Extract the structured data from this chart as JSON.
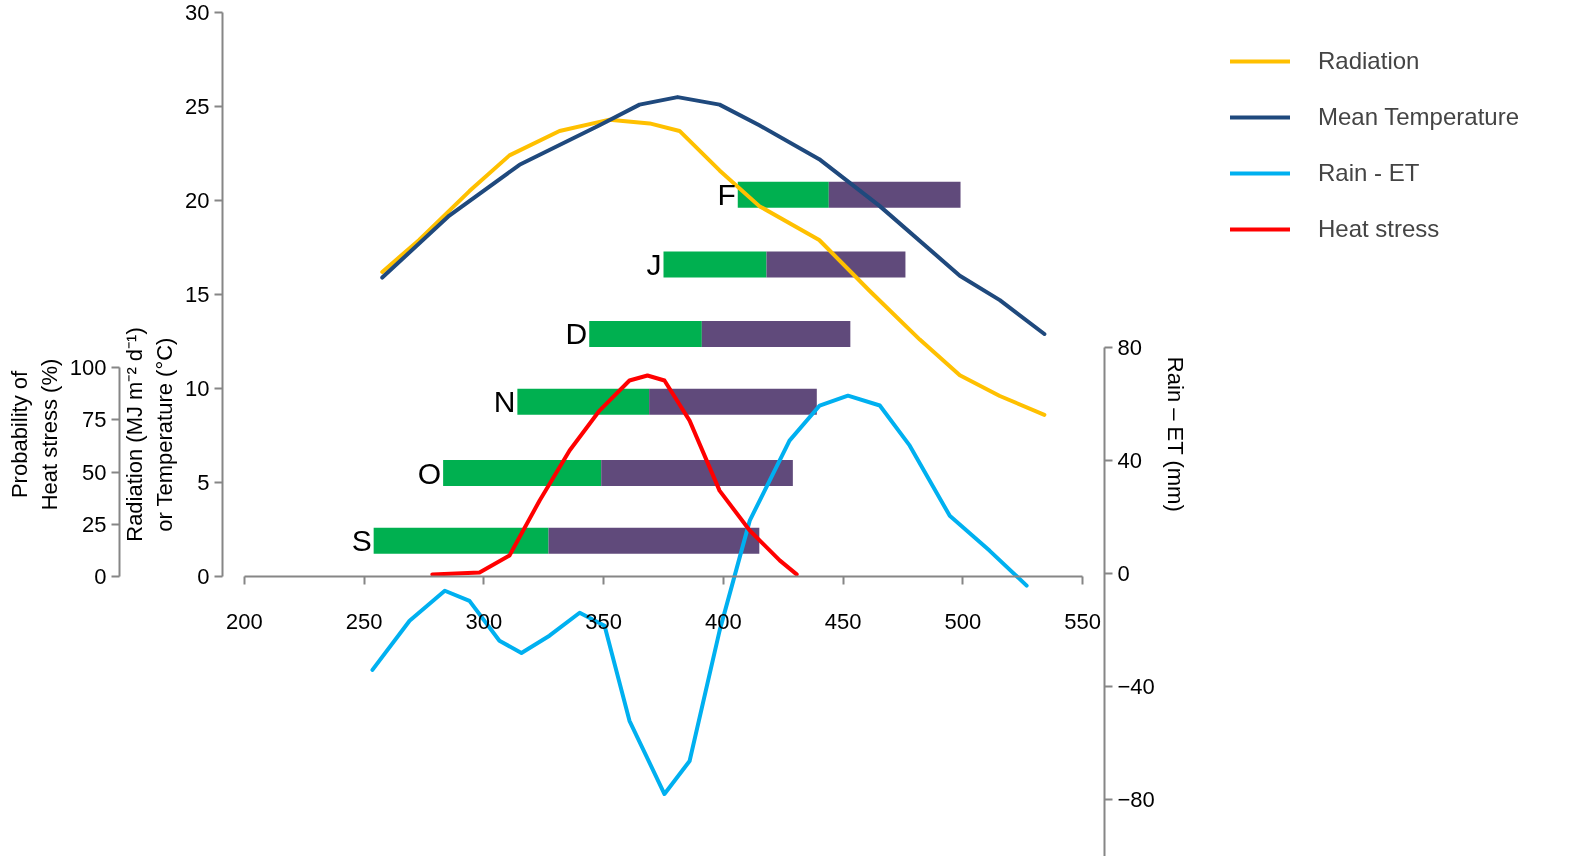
{
  "chart_data": {
    "type": "line",
    "ylabel": "Radiation (MJ m⁻² d⁻¹)\nor Temperature (°C)",
    "y2label": "Rain – ET (mm)",
    "y3label": "Probability of\nHeat stress (%)",
    "xlim": [
      200,
      550
    ],
    "xticks": [
      200,
      250,
      300,
      350,
      400,
      450,
      500,
      550
    ],
    "ylim": [
      0,
      30
    ],
    "yticks": [
      0,
      5,
      10,
      15,
      20,
      25,
      30
    ],
    "y2lim": [
      -100,
      80
    ],
    "y2ticks": [
      80,
      40,
      0,
      -40,
      -80
    ],
    "y3lim": [
      0,
      100
    ],
    "y3ticks": [
      0,
      25,
      50,
      75,
      100
    ],
    "grid": false,
    "legend": "top right",
    "annotations": [
      {
        "text": "F",
        "x": 406,
        "y": 20.3
      },
      {
        "text": "J",
        "x": 375,
        "y": 16.6
      },
      {
        "text": "D",
        "x": 344,
        "y": 12.9
      },
      {
        "text": "N",
        "x": 314,
        "y": 9.3
      },
      {
        "text": "O",
        "x": 283,
        "y": 5.5
      },
      {
        "text": "S",
        "x": 254,
        "y": 1.9
      }
    ],
    "series": [
      {
        "type": "line",
        "color": "#00b050",
        "x": [
          406,
          444
        ],
        "values": [
          20.3,
          20.3
        ]
      },
      {
        "type": "line",
        "color": "#604a7b",
        "x": [
          444,
          499
        ],
        "values": [
          20.3,
          20.3
        ]
      },
      {
        "type": "line",
        "color": "#00b050",
        "x": [
          375,
          418
        ],
        "values": [
          16.6,
          16.6
        ]
      },
      {
        "type": "line",
        "color": "#604a7b",
        "x": [
          418,
          476
        ],
        "values": [
          16.6,
          16.6
        ]
      },
      {
        "type": "line",
        "color": "#00b050",
        "x": [
          344,
          391
        ],
        "values": [
          12.9,
          12.9
        ]
      },
      {
        "type": "line",
        "color": "#604a7b",
        "x": [
          391,
          453
        ],
        "values": [
          12.9,
          12.9
        ]
      },
      {
        "type": "line",
        "color": "#00b050",
        "x": [
          314,
          369
        ],
        "values": [
          9.3,
          9.3
        ]
      },
      {
        "type": "line",
        "color": "#604a7b",
        "x": [
          369,
          439
        ],
        "values": [
          9.3,
          9.3
        ]
      },
      {
        "type": "line",
        "color": "#00b050",
        "x": [
          283,
          349
        ],
        "values": [
          5.5,
          5.5
        ]
      },
      {
        "type": "line",
        "color": "#604a7b",
        "x": [
          349,
          429
        ],
        "values": [
          5.5,
          5.5
        ]
      },
      {
        "type": "line",
        "color": "#00b050",
        "x": [
          254,
          327
        ],
        "values": [
          1.9,
          1.9
        ]
      },
      {
        "type": "line",
        "color": "#604a7b",
        "x": [
          327,
          415
        ],
        "values": [
          1.9,
          1.9
        ]
      },
      {
        "name": "Radiation",
        "color": "#ffc000",
        "x": [
          257.6,
          273,
          294,
          310.7,
          331.6,
          352.5,
          369.2,
          381.7,
          398.4,
          415,
          440,
          461,
          482,
          498.7,
          515.4,
          534
        ],
        "values": [
          16.2,
          17.9,
          20.5,
          22.4,
          23.7,
          24.3,
          24.1,
          23.7,
          21.6,
          19.7,
          17.9,
          15.2,
          12.6,
          10.7,
          9.6,
          8.6
        ]
      },
      {
        "name": "Mean Temperature",
        "color": "#1f497d",
        "x": [
          257.6,
          285.6,
          314.9,
          348.3,
          365,
          380.9,
          398.4,
          415,
          440,
          465.3,
          498.7,
          515.4,
          534
        ],
        "values": [
          15.9,
          19.2,
          21.9,
          24.0,
          25.1,
          25.5,
          25.1,
          24.0,
          22.2,
          19.7,
          16.0,
          14.7,
          12.9
        ]
      },
      {
        "name": "Rain - ET",
        "color": "#00b0f0",
        "axis": "y2",
        "x": [
          253.5,
          269,
          283.7,
          294,
          306.5,
          315.7,
          327.4,
          340,
          350.4,
          360.8,
          375.4,
          385.9,
          398.4,
          411,
          427.6,
          440.2,
          452,
          465.3,
          477.8,
          494.5,
          511.2,
          526.6
        ],
        "values": [
          -34,
          -16.6,
          -6,
          -9.6,
          -23.7,
          -28,
          -21.9,
          -13.8,
          -18.4,
          -52,
          -77.9,
          -66.2,
          -20.2,
          18.8,
          47.1,
          59.5,
          63,
          59.5,
          45.3,
          20.5,
          8.1,
          -4.2
        ]
      },
      {
        "name": "Heat stress",
        "color": "#ff0000",
        "axis": "y3",
        "x": [
          278.5,
          298.2,
          310.7,
          323.3,
          335.8,
          348.3,
          360.8,
          368.3,
          375.4,
          385.9,
          398.4,
          411,
          423.5,
          430.6
        ],
        "values": [
          1,
          1.9,
          10,
          36.4,
          60.3,
          79.4,
          93.8,
          96.2,
          93.8,
          74.6,
          41.1,
          22,
          7.7,
          1
        ]
      }
    ]
  }
}
